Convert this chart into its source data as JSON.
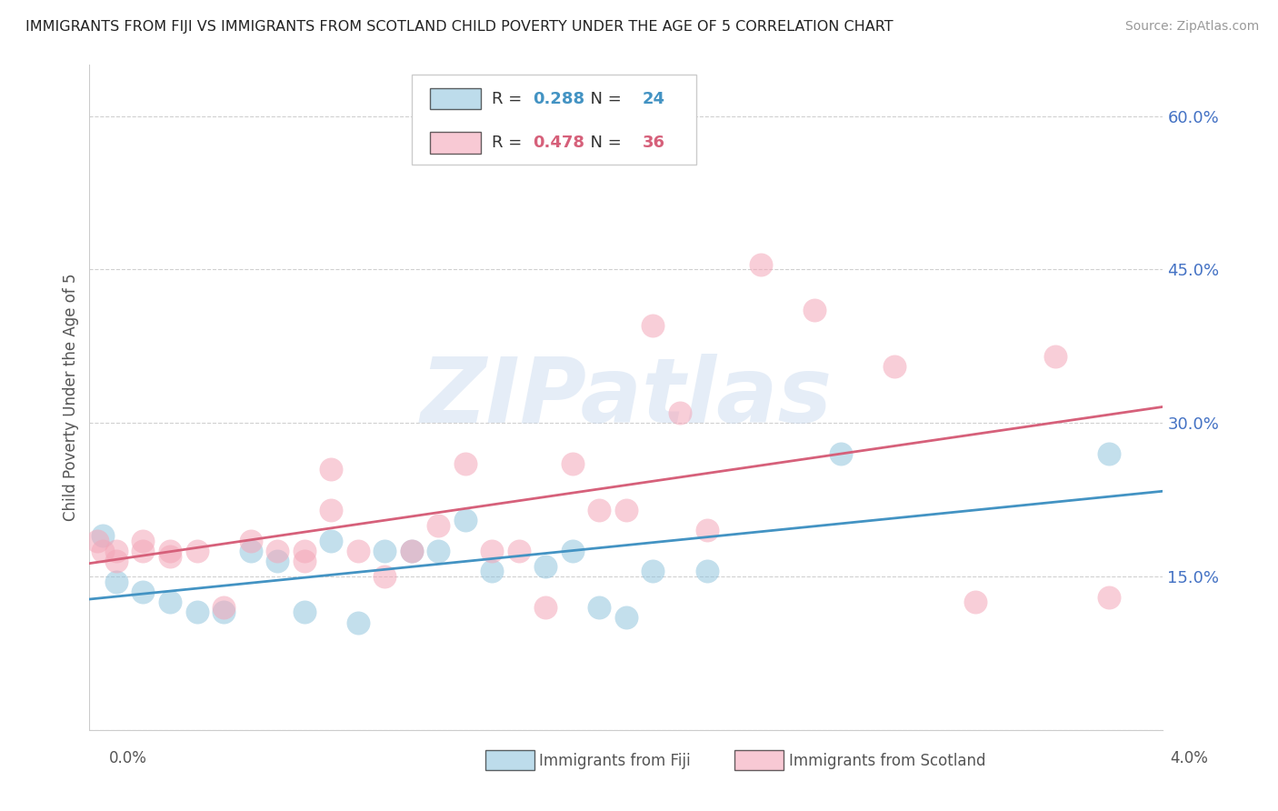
{
  "title": "IMMIGRANTS FROM FIJI VS IMMIGRANTS FROM SCOTLAND CHILD POVERTY UNDER THE AGE OF 5 CORRELATION CHART",
  "source": "Source: ZipAtlas.com",
  "ylabel": "Child Poverty Under the Age of 5",
  "yticks": [
    0.0,
    0.15,
    0.3,
    0.45,
    0.6
  ],
  "ytick_labels": [
    "",
    "15.0%",
    "30.0%",
    "45.0%",
    "60.0%"
  ],
  "xmin": 0.0,
  "xmax": 0.04,
  "ymin": 0.0,
  "ymax": 0.65,
  "watermark_text": "ZIPatlas",
  "fiji_R": "0.288",
  "fiji_N": "24",
  "scotland_R": "0.478",
  "scotland_N": "36",
  "fiji_color": "#92c5de",
  "scotland_color": "#f4a6b8",
  "fiji_line_color": "#4393c3",
  "scotland_line_color": "#d6607a",
  "fiji_points_x": [
    0.0005,
    0.001,
    0.002,
    0.003,
    0.004,
    0.005,
    0.006,
    0.007,
    0.008,
    0.009,
    0.01,
    0.011,
    0.012,
    0.013,
    0.014,
    0.015,
    0.017,
    0.018,
    0.019,
    0.02,
    0.021,
    0.023,
    0.028,
    0.038
  ],
  "fiji_points_y": [
    0.19,
    0.145,
    0.135,
    0.125,
    0.115,
    0.115,
    0.175,
    0.165,
    0.115,
    0.185,
    0.105,
    0.175,
    0.175,
    0.175,
    0.205,
    0.155,
    0.16,
    0.175,
    0.12,
    0.11,
    0.155,
    0.155,
    0.27,
    0.27
  ],
  "scotland_points_x": [
    0.0003,
    0.0005,
    0.001,
    0.001,
    0.002,
    0.002,
    0.003,
    0.003,
    0.004,
    0.005,
    0.006,
    0.007,
    0.008,
    0.008,
    0.009,
    0.009,
    0.01,
    0.011,
    0.012,
    0.013,
    0.014,
    0.015,
    0.016,
    0.017,
    0.018,
    0.019,
    0.02,
    0.021,
    0.022,
    0.023,
    0.025,
    0.027,
    0.03,
    0.033,
    0.036,
    0.038
  ],
  "scotland_points_y": [
    0.185,
    0.175,
    0.175,
    0.165,
    0.185,
    0.175,
    0.175,
    0.17,
    0.175,
    0.12,
    0.185,
    0.175,
    0.175,
    0.165,
    0.255,
    0.215,
    0.175,
    0.15,
    0.175,
    0.2,
    0.26,
    0.175,
    0.175,
    0.12,
    0.26,
    0.215,
    0.215,
    0.395,
    0.31,
    0.195,
    0.455,
    0.41,
    0.355,
    0.125,
    0.365,
    0.13
  ],
  "grid_color": "#d0d0d0",
  "spine_color": "#cccccc",
  "tick_color": "#4472c4",
  "label_color": "#555555",
  "title_color": "#222222",
  "source_color": "#999999",
  "legend_box_color": "#cccccc",
  "watermark_color": "#ccdcf0",
  "watermark_alpha": 0.5
}
